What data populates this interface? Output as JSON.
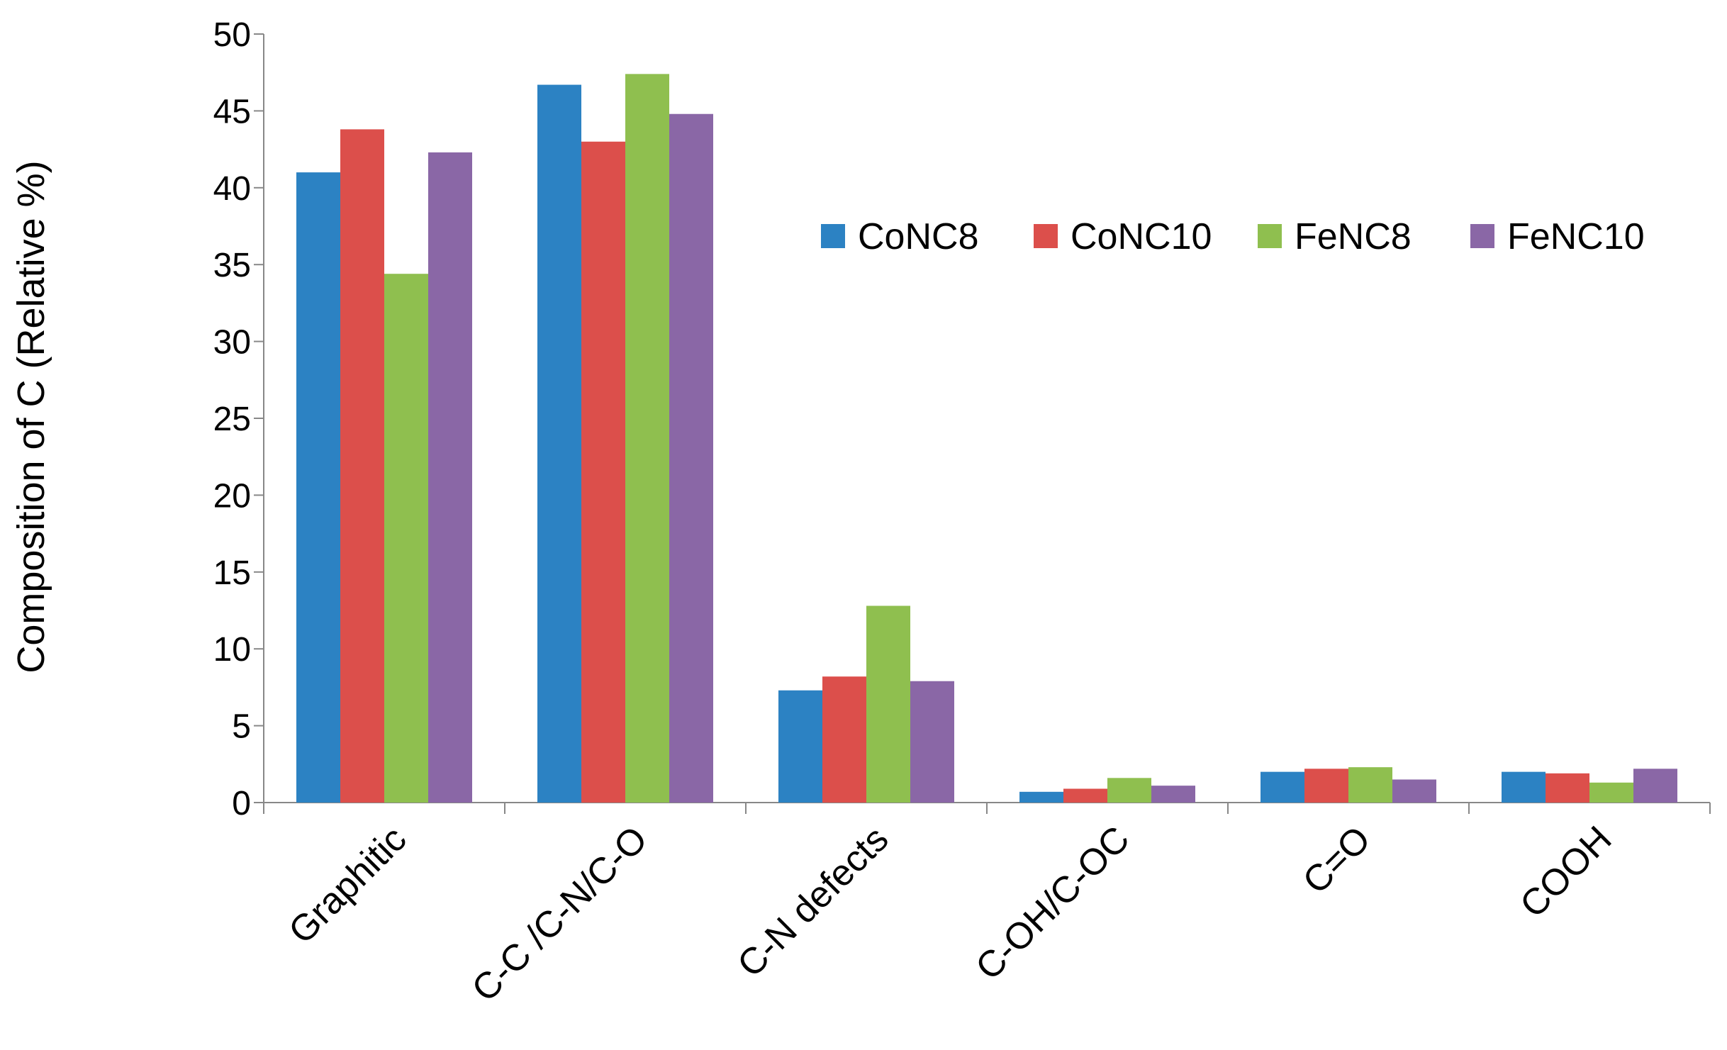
{
  "chart_data": {
    "type": "bar",
    "categories": [
      "Graphitic",
      "C-C /C-N/C-O",
      "C-N defects",
      "C-OH/C-OC",
      "C=O",
      "COOH"
    ],
    "series": [
      {
        "name": "CoNC8",
        "color": "#2C82C3",
        "values": [
          41.0,
          46.7,
          7.3,
          0.7,
          2.0,
          2.0
        ]
      },
      {
        "name": "CoNC10",
        "color": "#DC4F4B",
        "values": [
          43.8,
          43.0,
          8.2,
          0.9,
          2.2,
          1.9
        ]
      },
      {
        "name": "FeNC8",
        "color": "#8FBF4F",
        "values": [
          34.4,
          47.4,
          12.8,
          1.6,
          2.3,
          1.3
        ]
      },
      {
        "name": "FeNC10",
        "color": "#8A67A6",
        "values": [
          42.3,
          44.8,
          7.9,
          1.1,
          1.5,
          2.2
        ]
      }
    ],
    "ylabel": "Composition of C (Relative %)",
    "xlabel": "",
    "ylim": [
      0,
      50
    ],
    "yticks": [
      0,
      5,
      10,
      15,
      20,
      25,
      30,
      35,
      40,
      45,
      50
    ],
    "grid": false,
    "legend_position": "right"
  }
}
